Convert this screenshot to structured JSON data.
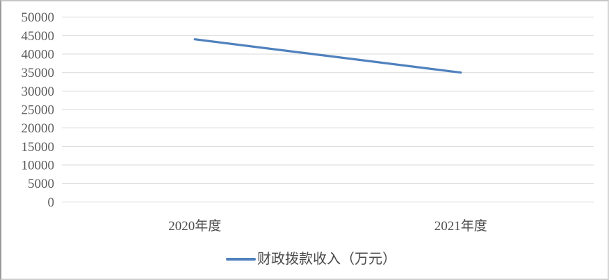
{
  "chart_data": {
    "type": "line",
    "title": "",
    "categories": [
      "2020年度",
      "2021年度"
    ],
    "series": [
      {
        "name": "财政拨款收入（万元）",
        "values": [
          44000,
          35000
        ],
        "color": "#4F81BD"
      }
    ],
    "y_ticks": [
      0,
      5000,
      10000,
      15000,
      20000,
      25000,
      30000,
      35000,
      40000,
      45000,
      50000
    ],
    "ylim": [
      0,
      50000
    ],
    "xlabel": "",
    "ylabel": "",
    "grid": "horizontal-only",
    "legend_position": "bottom-center"
  },
  "colors": {
    "series_line": "#4F81BD",
    "gridline": "#d9d9d9",
    "y_tick_text": "#595959",
    "x_label_text": "#4d4d4d",
    "legend_text": "#4a4a4a"
  }
}
